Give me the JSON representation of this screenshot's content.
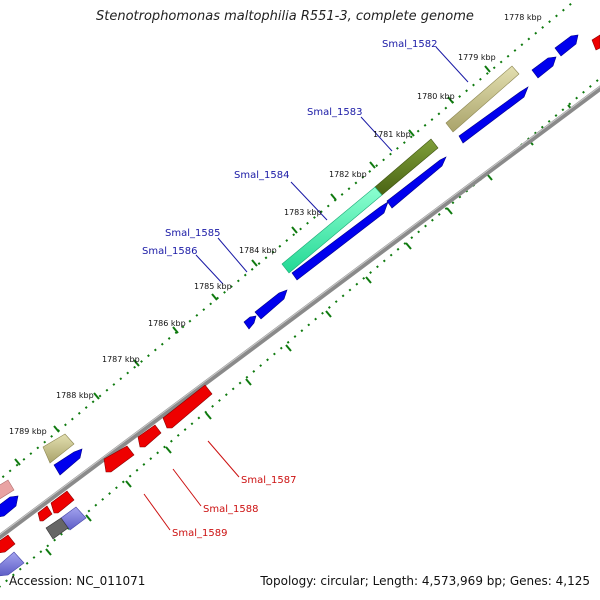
{
  "title": "Stenotrophomonas maltophilia R551-3, complete genome",
  "footer": {
    "accession_label": "Accession:",
    "accession": "NC_011071",
    "topology_text": "Topology: circular; Length: 4,573,969 bp; Genes: 4,125"
  },
  "colors": {
    "forward_gene": "#0000ee",
    "reverse_gene": "#ee0000",
    "label_forward": "#1a1aa6",
    "label_reverse": "#cc1111",
    "backbone": "#8a8a8a",
    "tick": "#0f7a0f",
    "khaki": "#c9c38a",
    "olive": "#5f7f1f",
    "aquamarine": "#3cf0aa",
    "slate": "#7b7bd9",
    "grey": "#666666",
    "pink": "#e9a3a3"
  },
  "ticks": [
    {
      "label": "1778 kbp"
    },
    {
      "label": "1779 kbp"
    },
    {
      "label": "1780 kbp"
    },
    {
      "label": "1781 kbp"
    },
    {
      "label": "1782 kbp"
    },
    {
      "label": "1783 kbp"
    },
    {
      "label": "1784 kbp"
    },
    {
      "label": "1785 kbp"
    },
    {
      "label": "1786 kbp"
    },
    {
      "label": "1787 kbp"
    },
    {
      "label": "1788 kbp"
    },
    {
      "label": "1789 kbp"
    }
  ],
  "gene_labels": [
    {
      "text": "Smal_1582",
      "strand": "forward"
    },
    {
      "text": "Smal_1583",
      "strand": "forward"
    },
    {
      "text": "Smal_1584",
      "strand": "forward"
    },
    {
      "text": "Smal_1585",
      "strand": "forward"
    },
    {
      "text": "Smal_1586",
      "strand": "forward"
    },
    {
      "text": "Smal_1587",
      "strand": "reverse"
    },
    {
      "text": "Smal_1588",
      "strand": "reverse"
    },
    {
      "text": "Smal_1589",
      "strand": "reverse"
    }
  ]
}
